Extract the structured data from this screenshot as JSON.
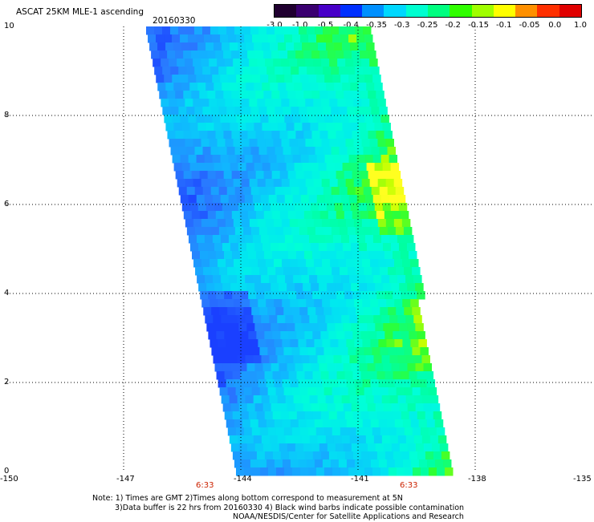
{
  "title": "ASCAT 25KM MLE-1 ascending",
  "date": "20160330",
  "colorbar": {
    "ticks": [
      "-3.0",
      "-1.0",
      "-0.5",
      "-0.4",
      "-0.35",
      "-0.3",
      "-0.25",
      "-0.2",
      "-0.15",
      "-0.1",
      "-0.05",
      "0.0",
      "1.0"
    ],
    "colors": [
      "#200030",
      "#3a0070",
      "#4800c8",
      "#0030ff",
      "#0090ff",
      "#00d8ff",
      "#00ffd0",
      "#00ff80",
      "#30ff00",
      "#a0ff00",
      "#ffff00",
      "#ff9000",
      "#ff3000",
      "#e00000"
    ]
  },
  "map": {
    "x_ticks": [
      "-150",
      "-147",
      "-144",
      "-141",
      "-138",
      "-135"
    ],
    "y_ticks": [
      "10",
      "8",
      "6",
      "4",
      "2",
      "0"
    ],
    "x_range": [
      -150,
      -135
    ],
    "y_range": [
      0,
      10
    ],
    "swath_times": [
      "6:33",
      "6:33"
    ]
  },
  "notes": {
    "line1": "Note: 1) Times are GMT 2)Times along bottom correspond to measurement at 5N",
    "line2": "3)Data buffer is 22 hrs from 20160330 4) Black wind barbs indicate possible contamination",
    "line3": "NOAA/NESDIS/Center for Satellite Applications and Research"
  }
}
